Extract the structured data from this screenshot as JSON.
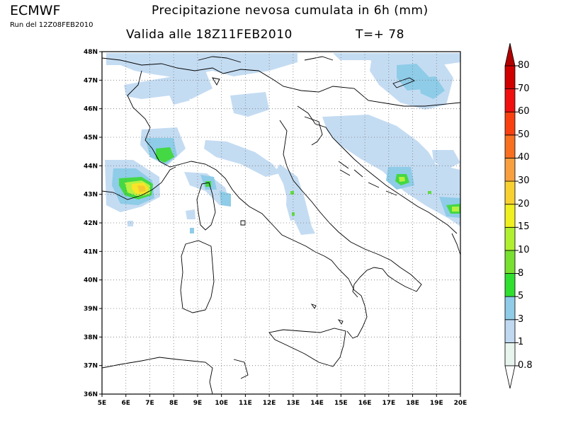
{
  "header": {
    "org": "ECMWF",
    "run": "Run del 12Z08FEB2010",
    "title": "Precipitazione nevosa cumulata in 6h (mm)",
    "valid": "Valida alle 18Z11FEB2010",
    "step": "T=+ 78"
  },
  "map": {
    "lon_range": [
      5,
      20
    ],
    "lat_range": [
      36,
      48
    ],
    "lon_ticks": [
      "5E",
      "6E",
      "7E",
      "8E",
      "9E",
      "10E",
      "11E",
      "12E",
      "13E",
      "14E",
      "15E",
      "16E",
      "17E",
      "18E",
      "19E",
      "20E"
    ],
    "lat_ticks": [
      "36N",
      "37N",
      "38N",
      "39N",
      "40N",
      "41N",
      "42N",
      "43N",
      "44N",
      "45N",
      "46N",
      "47N",
      "48N"
    ],
    "grid": "dotted"
  },
  "colorbar": {
    "labels": [
      "0.8",
      "1",
      "3",
      "5",
      "8",
      "10",
      "15",
      "20",
      "30",
      "40",
      "50",
      "60",
      "70",
      "80"
    ],
    "colors": [
      "#ffffff",
      "#e8f4ee",
      "#c0d8f0",
      "#90cce8",
      "#30e030",
      "#78e030",
      "#b0f030",
      "#f0f020",
      "#f8d030",
      "#f8a040",
      "#f87020",
      "#f84010",
      "#f01010",
      "#d00000",
      "#b00000"
    ]
  }
}
